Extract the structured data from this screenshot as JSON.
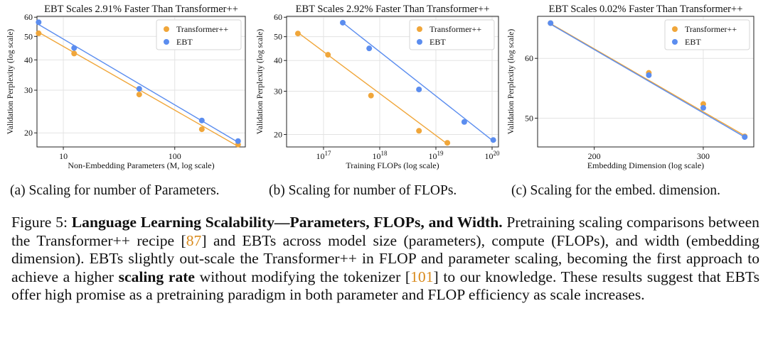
{
  "colors": {
    "transformer": "#f0a63a",
    "ebt": "#5b8def"
  },
  "chart_data": [
    {
      "type": "scatter",
      "title": "EBT Scales 2.91% Faster Than Transformer++",
      "xlabel": "Non-Embedding Parameters (M, log scale)",
      "ylabel": "Validation Perplexity (log scale)",
      "xscale": "log",
      "yscale": "log",
      "xlim": [
        5.8,
        430
      ],
      "ylim": [
        17.5,
        60.5
      ],
      "xticks": [
        {
          "v": 10,
          "label": "10"
        },
        {
          "v": 100,
          "label": "100"
        }
      ],
      "yticks": [
        {
          "v": 20,
          "label": "20"
        },
        {
          "v": 30,
          "label": "30"
        },
        {
          "v": 40,
          "label": "40"
        },
        {
          "v": 50,
          "label": "50"
        },
        {
          "v": 60,
          "label": "60"
        }
      ],
      "legend": "top-right",
      "series": [
        {
          "name": "Transformer++",
          "color_key": "transformer",
          "x": [
            6,
            12.5,
            48,
            175,
            370
          ],
          "y": [
            51.5,
            42.5,
            28.8,
            20.7,
            17.9
          ],
          "fit": [
            [
              6,
              52.0
            ],
            [
              370,
              17.6
            ]
          ]
        },
        {
          "name": "EBT",
          "color_key": "ebt",
          "x": [
            6,
            12.5,
            48,
            175,
            370
          ],
          "y": [
            57.2,
            44.8,
            30.4,
            22.5,
            18.5
          ],
          "fit": [
            [
              6,
              56.0
            ],
            [
              370,
              18.3
            ]
          ]
        }
      ]
    },
    {
      "type": "scatter",
      "title": "EBT Scales 2.92% Faster Than Transformer++",
      "xlabel": "Training FLOPs (log scale)",
      "ylabel": "Validation Perplexity (log scale)",
      "xscale": "log",
      "yscale": "log",
      "xlim": [
        2.2e+16,
        1.3e+20
      ],
      "ylim": [
        17.8,
        60.5
      ],
      "xticks": [
        {
          "v": 1e+17,
          "label": "10",
          "exp": "17"
        },
        {
          "v": 1e+18,
          "label": "10",
          "exp": "18"
        },
        {
          "v": 1e+19,
          "label": "10",
          "exp": "19"
        },
        {
          "v": 1e+20,
          "label": "10",
          "exp": "20"
        }
      ],
      "yticks": [
        {
          "v": 20,
          "label": "20"
        },
        {
          "v": 30,
          "label": "30"
        },
        {
          "v": 40,
          "label": "40"
        },
        {
          "v": 50,
          "label": "50"
        },
        {
          "v": 60,
          "label": "60"
        }
      ],
      "legend": "top-right",
      "series": [
        {
          "name": "Transformer++",
          "color_key": "transformer",
          "x": [
            3.5e+16,
            1.2e+17,
            7e+17,
            5e+18,
            1.6e+19
          ],
          "y": [
            51.5,
            42.2,
            28.8,
            20.7,
            18.5
          ],
          "fit": [
            [
              3.5e+16,
              52.0
            ],
            [
              1.6e+19,
              18.3
            ]
          ]
        },
        {
          "name": "EBT",
          "color_key": "ebt",
          "x": [
            2.2e+17,
            6.5e+17,
            5e+18,
            3.2e+19,
            1.05e+20
          ],
          "y": [
            57.0,
            44.8,
            30.5,
            22.5,
            19.0
          ],
          "fit": [
            [
              2.2e+17,
              57.0
            ],
            [
              1.05e+20,
              18.8
            ]
          ]
        }
      ]
    },
    {
      "type": "scatter",
      "title": "EBT Scales 0.02% Faster Than Transformer++",
      "xlabel": "Embedding Dimension (log scale)",
      "ylabel": "Validation Perplexity (log scale)",
      "xscale": "log",
      "yscale": "log",
      "xlim": [
        162,
        362
      ],
      "ylim": [
        45.8,
        68.2
      ],
      "xticks": [
        {
          "v": 200,
          "label": "200"
        },
        {
          "v": 300,
          "label": "300"
        }
      ],
      "yticks": [
        {
          "v": 50,
          "label": "50"
        },
        {
          "v": 60,
          "label": "60"
        }
      ],
      "legend": "top-right",
      "series": [
        {
          "name": "Transformer++",
          "color_key": "transformer",
          "x": [
            170,
            245,
            300,
            350
          ],
          "y": [
            66.8,
            57.4,
            52.2,
            47.3
          ],
          "fit": [
            [
              170,
              66.7
            ],
            [
              350,
              47.4
            ]
          ]
        },
        {
          "name": "EBT",
          "color_key": "ebt",
          "x": [
            170,
            245,
            300,
            350
          ],
          "y": [
            66.8,
            57.0,
            51.6,
            47.2
          ],
          "fit": [
            [
              170,
              66.6
            ],
            [
              350,
              47.2
            ]
          ]
        }
      ]
    }
  ],
  "captions": {
    "a": "(a) Scaling for number of Parameters.",
    "b": "(b) Scaling for number of FLOPs.",
    "c": "(c) Scaling for the embed. dimension."
  },
  "paragraph": {
    "p1": "Figure 5: ",
    "p2": "Language Learning Scalability—Parameters, FLOPs, and Width.",
    "p3": " Pretraining scaling comparisons between the Transformer++ recipe [",
    "p4": "87",
    "p5": "] and EBTs across model size (parameters), compute (FLOPs), and width (embedding dimension). EBTs slightly out-scale the Transformer++ in FLOP and parameter scaling, becoming the first approach to achieve a higher ",
    "p6": "scaling rate",
    "p7": " without modifying the tokenizer [",
    "p8": "101",
    "p9": "] to our knowledge. These results suggest that EBTs offer high promise as a pretraining paradigm in both parameter and FLOP efficiency as scale increases."
  }
}
